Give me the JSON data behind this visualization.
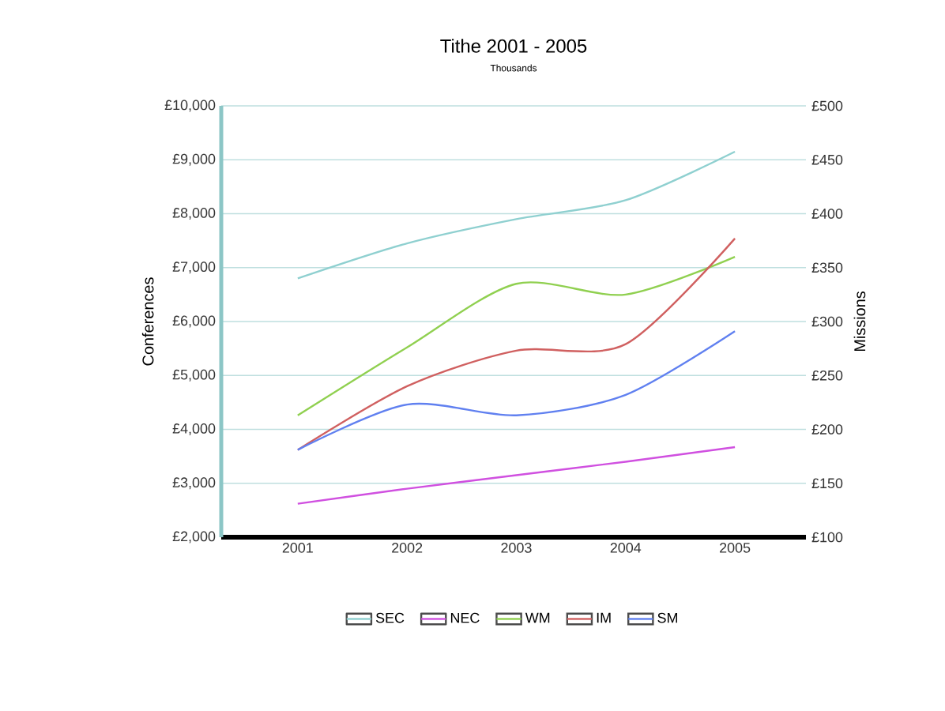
{
  "chart_data": {
    "type": "line",
    "title": "Tithe 2001 - 2005",
    "subtitle": "Thousands",
    "ylabel": "Conferences",
    "y2label": "Missions",
    "categories": [
      "2001",
      "2002",
      "2003",
      "2004",
      "2005"
    ],
    "series": [
      {
        "name": "SEC",
        "color": "#8fd0d0",
        "values": [
          6800,
          7450,
          7900,
          8250,
          9150
        ]
      },
      {
        "name": "NEC",
        "color": "#d050e0",
        "values": [
          2620,
          2900,
          3150,
          3400,
          3670
        ]
      },
      {
        "name": "WM",
        "color": "#90d050",
        "axis": "y2",
        "values": [
          213,
          276,
          335,
          325,
          360
        ]
      },
      {
        "name": "IM",
        "color": "#d06060",
        "axis": "y2",
        "values": [
          181,
          240,
          273,
          279,
          377
        ]
      },
      {
        "name": "SM",
        "color": "#6080f0",
        "axis": "y2",
        "values": [
          181,
          223,
          213,
          232,
          291
        ]
      }
    ],
    "ylim": [
      2000,
      10000
    ],
    "yticks": [
      {
        "value": 2000,
        "label": "£2,000"
      },
      {
        "value": 3000,
        "label": "£3,000"
      },
      {
        "value": 4000,
        "label": "£4,000"
      },
      {
        "value": 5000,
        "label": "£5,000"
      },
      {
        "value": 6000,
        "label": "£6,000"
      },
      {
        "value": 7000,
        "label": "£7,000"
      },
      {
        "value": 8000,
        "label": "£8,000"
      },
      {
        "value": 9000,
        "label": "£9,000"
      },
      {
        "value": 10000,
        "label": "£10,000"
      }
    ],
    "y2lim": [
      100,
      500
    ],
    "y2ticks": [
      {
        "value": 100,
        "label": "£100"
      },
      {
        "value": 150,
        "label": "£150"
      },
      {
        "value": 200,
        "label": "£200"
      },
      {
        "value": 250,
        "label": "£250"
      },
      {
        "value": 300,
        "label": "£300"
      },
      {
        "value": 350,
        "label": "£350"
      },
      {
        "value": 400,
        "label": "£400"
      },
      {
        "value": 450,
        "label": "£450"
      },
      {
        "value": 500,
        "label": "£500"
      }
    ],
    "grid": "y",
    "legend": "bottom",
    "marker": "none"
  }
}
